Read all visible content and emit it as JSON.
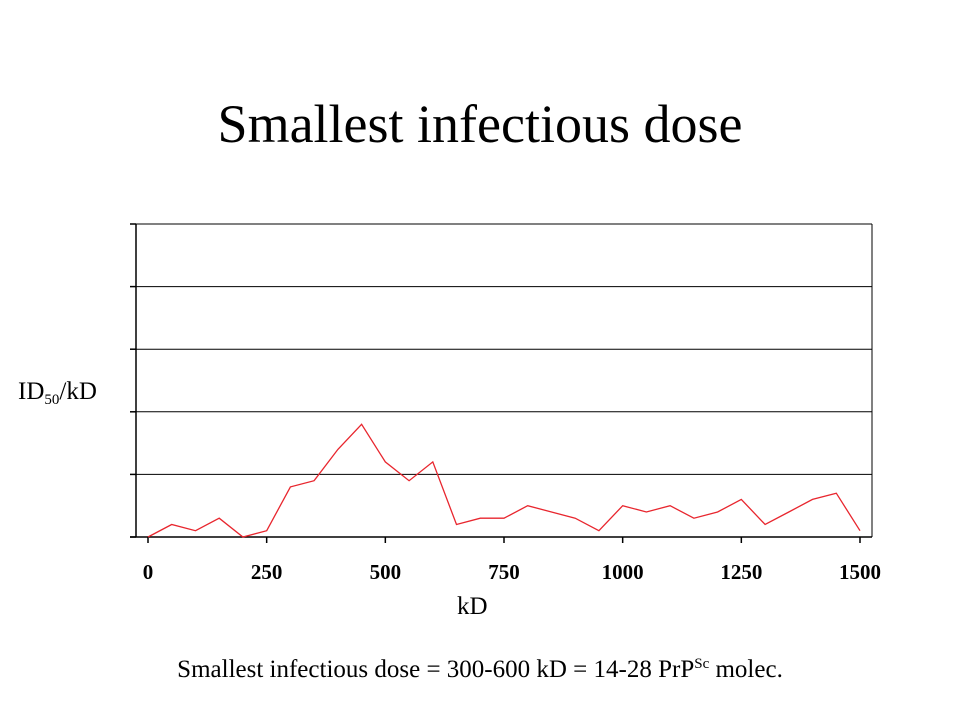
{
  "slide": {
    "title": "Smallest infectious dose",
    "footnote_main": "Smallest infectious dose = 300-600 kD = 14-28 PrP",
    "footnote_sup": "Sc",
    "footnote_tail": " molec."
  },
  "chart_data": {
    "type": "line",
    "title": "",
    "xlabel": "kD",
    "ylabel_main": "ID",
    "ylabel_sub": "50",
    "ylabel_tail": "/kD",
    "xlim": [
      0,
      1500
    ],
    "ylim": [
      0,
      5
    ],
    "x_ticks": [
      0,
      250,
      500,
      750,
      1000,
      1250,
      1500
    ],
    "x_tick_labels": [
      "0",
      "250",
      "500",
      "750",
      "1000",
      "1250",
      "1500"
    ],
    "y_ticks": [
      0,
      1,
      2,
      3,
      4,
      5
    ],
    "y_tick_labels": [],
    "grid": "horizontal",
    "legend": "none",
    "series": [
      {
        "color": "#e8262e",
        "x": [
          0,
          50,
          100,
          150,
          200,
          250,
          300,
          350,
          400,
          450,
          500,
          550,
          600,
          650,
          700,
          750,
          800,
          850,
          900,
          950,
          1000,
          1050,
          1100,
          1150,
          1200,
          1250,
          1300,
          1350,
          1400,
          1450,
          1500
        ],
        "values": [
          0,
          0.2,
          0.1,
          0.3,
          0,
          0.1,
          0.8,
          0.9,
          1.4,
          1.8,
          1.2,
          0.9,
          1.2,
          0.2,
          0.3,
          0.3,
          0.5,
          0.4,
          0.3,
          0.1,
          0.5,
          0.4,
          0.5,
          0.3,
          0.4,
          0.6,
          0.2,
          0.4,
          0.6,
          0.7,
          0.1
        ]
      }
    ]
  }
}
